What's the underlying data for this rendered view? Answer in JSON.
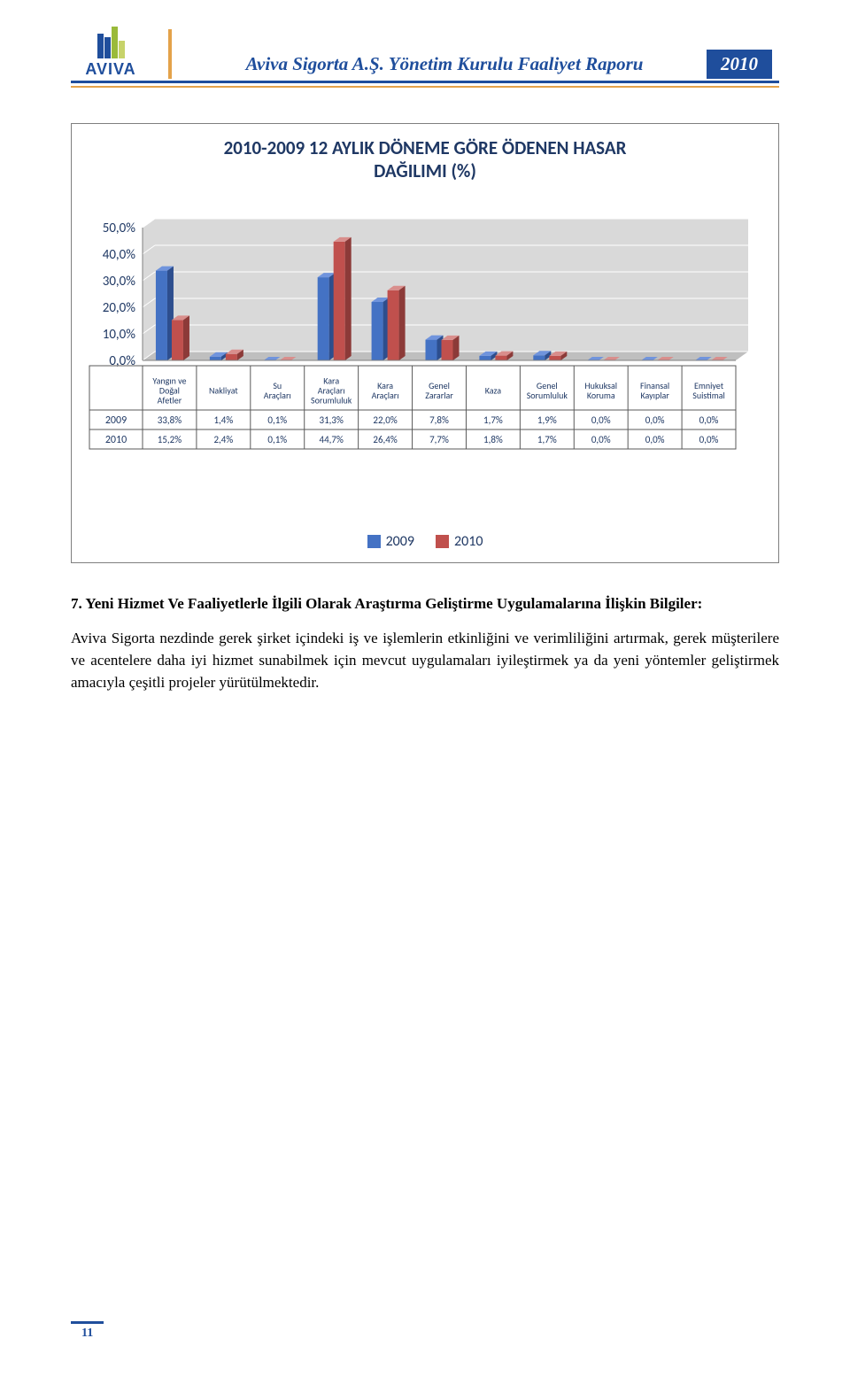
{
  "header": {
    "logo_text": "AVIVA",
    "title": "Aviva Sigorta A.Ş. Yönetim Kurulu Faaliyet Raporu",
    "year": "2010"
  },
  "chart": {
    "type": "bar-3d-grouped",
    "title_line1": "2010-2009 12 AYLIK DÖNEME GÖRE ÖDENEN HASAR",
    "title_line2": "DAĞILIMI (%)",
    "y_axis": {
      "min": 0,
      "max": 50,
      "step": 10,
      "labels": [
        "0,0%",
        "10,0%",
        "20,0%",
        "30,0%",
        "40,0%",
        "50,0%"
      ],
      "label_fontsize": 16,
      "label_color": "#1f3864"
    },
    "categories": [
      "Yangın ve Doğal Afetler",
      "Nakliyat",
      "Su Araçları",
      "Kara Araçları Sorumluluk",
      "Kara Araçları",
      "Genel Zararlar",
      "Kaza",
      "Genel Sorumluluk",
      "Hukuksal Koruma",
      "Finansal Kayıplar",
      "Emniyet Suistimal"
    ],
    "category_fontsize": 10,
    "series": [
      {
        "name": "2009",
        "color_front": "#4472c4",
        "color_top": "#7094dd",
        "color_side": "#2d4e8e",
        "values_pct": [
          33.8,
          1.4,
          0.1,
          31.3,
          22.0,
          7.8,
          1.7,
          1.9,
          0.0,
          0.0,
          0.0
        ],
        "values_label": [
          "33,8%",
          "1,4%",
          "0,1%",
          "31,3%",
          "22,0%",
          "7,8%",
          "1,7%",
          "1,9%",
          "0,0%",
          "0,0%",
          "0,0%"
        ]
      },
      {
        "name": "2010",
        "color_front": "#c0504d",
        "color_top": "#d98e8c",
        "color_side": "#8c3a38",
        "values_pct": [
          15.2,
          2.4,
          0.1,
          44.7,
          26.4,
          7.7,
          1.8,
          1.7,
          0.0,
          0.0,
          0.0
        ],
        "values_label": [
          "15,2%",
          "2,4%",
          "0,1%",
          "44,7%",
          "26,4%",
          "7,7%",
          "1,8%",
          "1,7%",
          "0,0%",
          "0,0%",
          "0,0%"
        ]
      }
    ],
    "table_row_labels": [
      "2009",
      "2010"
    ],
    "legend_items": [
      "2009",
      "2010"
    ],
    "legend_colors": [
      "#4472c4",
      "#c0504d"
    ],
    "floor_color": "#bfbfbf",
    "wall_color": "#d9d9d9",
    "grid_color": "#ffffff",
    "table_border_color": "#595959",
    "background_color": "#ffffff"
  },
  "section7": {
    "heading": "7. Yeni Hizmet Ve Faaliyetlerle İlgili Olarak Araştırma Geliştirme Uygulamalarına İlişkin Bilgiler:",
    "paragraph": "Aviva Sigorta nezdinde gerek şirket içindeki iş ve işlemlerin etkinliğini ve verimliliğini artırmak, gerek müşterilere ve acentelere daha iyi hizmet sunabilmek için mevcut uygulamaları iyileştirmek ya da yeni yöntemler geliştirmek amacıyla çeşitli projeler yürütülmektedir."
  },
  "footer": {
    "page_number": "11"
  }
}
